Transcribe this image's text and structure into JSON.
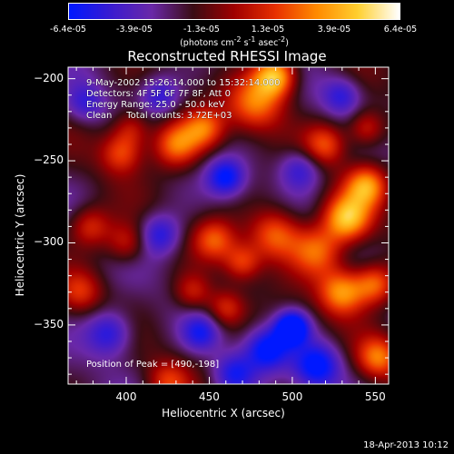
{
  "colorbar": {
    "ticks": [
      "-6.4e-05",
      "-3.9e-05",
      "-1.3e-05",
      "1.3e-05",
      "3.9e-05",
      "6.4e-05"
    ],
    "units_html": "(photons cm<sup>-2</sup> s<sup>-1</sup> asec<sup>-2</sup>)",
    "colors": [
      "#0018ff",
      "#3a1bd0",
      "#6a28a8",
      "#3a0c14",
      "#a00000",
      "#e83000",
      "#ff8a00",
      "#ffd030",
      "#ffffff"
    ]
  },
  "info": {
    "line1": "9-May-2002 15:26:14.000 to 15:32:14.000",
    "line2": "Detectors: 4F 5F 6F 7F 8F, Att 0",
    "line3": "Energy Range: 25.0 - 50.0 keV",
    "line4": "Clean     Total counts: 3.72E+03",
    "peak": "Position of Peak = [490,-198]"
  },
  "timestamp": "18-Apr-2013 10:12",
  "chart_data": {
    "type": "heatmap",
    "title": "Reconstructed RHESSI Image",
    "xlabel": "Heliocentric X (arcsec)",
    "ylabel": "Heliocentric Y (arcsec)",
    "xlim": [
      365,
      558
    ],
    "ylim": [
      -386,
      -193
    ],
    "x_ticks": [
      400,
      450,
      500,
      550
    ],
    "y_ticks": [
      -200,
      -250,
      -300,
      -350
    ],
    "value_range": [
      -6.4e-05,
      6.4e-05
    ],
    "peak": [
      490,
      -198
    ],
    "blobs": [
      {
        "x": 490,
        "y": -198,
        "v": 1.0,
        "s": 9
      },
      {
        "x": 478,
        "y": -215,
        "v": 0.7,
        "s": 12
      },
      {
        "x": 430,
        "y": -240,
        "v": 0.75,
        "s": 10
      },
      {
        "x": 447,
        "y": -230,
        "v": 0.65,
        "s": 9
      },
      {
        "x": 397,
        "y": -245,
        "v": 0.6,
        "s": 9
      },
      {
        "x": 403,
        "y": -230,
        "v": 0.45,
        "s": 8
      },
      {
        "x": 378,
        "y": -290,
        "v": 0.55,
        "s": 9
      },
      {
        "x": 400,
        "y": -300,
        "v": 0.5,
        "s": 9
      },
      {
        "x": 372,
        "y": -330,
        "v": 0.45,
        "s": 9
      },
      {
        "x": 453,
        "y": -298,
        "v": 0.6,
        "s": 9
      },
      {
        "x": 470,
        "y": -312,
        "v": 0.55,
        "s": 8
      },
      {
        "x": 490,
        "y": -295,
        "v": 0.7,
        "s": 11
      },
      {
        "x": 515,
        "y": -305,
        "v": 0.7,
        "s": 11
      },
      {
        "x": 533,
        "y": -285,
        "v": 0.95,
        "s": 10
      },
      {
        "x": 545,
        "y": -265,
        "v": 0.8,
        "s": 9
      },
      {
        "x": 520,
        "y": -240,
        "v": 0.6,
        "s": 9
      },
      {
        "x": 545,
        "y": -230,
        "v": 0.55,
        "s": 8
      },
      {
        "x": 530,
        "y": -330,
        "v": 0.85,
        "s": 10
      },
      {
        "x": 550,
        "y": -325,
        "v": 0.75,
        "s": 9
      },
      {
        "x": 460,
        "y": -340,
        "v": 0.5,
        "s": 8
      },
      {
        "x": 440,
        "y": -330,
        "v": 0.45,
        "s": 8
      },
      {
        "x": 552,
        "y": -370,
        "v": 0.7,
        "s": 9
      },
      {
        "x": 425,
        "y": -385,
        "v": 0.5,
        "s": 9
      },
      {
        "x": 500,
        "y": -352,
        "v": -1.0,
        "s": 7
      },
      {
        "x": 485,
        "y": -365,
        "v": -0.7,
        "s": 9
      },
      {
        "x": 515,
        "y": -375,
        "v": -0.75,
        "s": 10
      },
      {
        "x": 460,
        "y": -260,
        "v": -0.65,
        "s": 8
      },
      {
        "x": 390,
        "y": -355,
        "v": -0.6,
        "s": 10
      },
      {
        "x": 420,
        "y": -295,
        "v": -0.55,
        "s": 9
      },
      {
        "x": 505,
        "y": -255,
        "v": -0.5,
        "s": 9
      },
      {
        "x": 420,
        "y": -210,
        "v": -0.45,
        "s": 8
      },
      {
        "x": 465,
        "y": -380,
        "v": -0.55,
        "s": 9
      },
      {
        "x": 445,
        "y": -355,
        "v": -0.5,
        "s": 8
      },
      {
        "x": 530,
        "y": -210,
        "v": -0.45,
        "s": 8
      },
      {
        "x": 375,
        "y": -215,
        "v": -0.4,
        "s": 8
      }
    ]
  }
}
